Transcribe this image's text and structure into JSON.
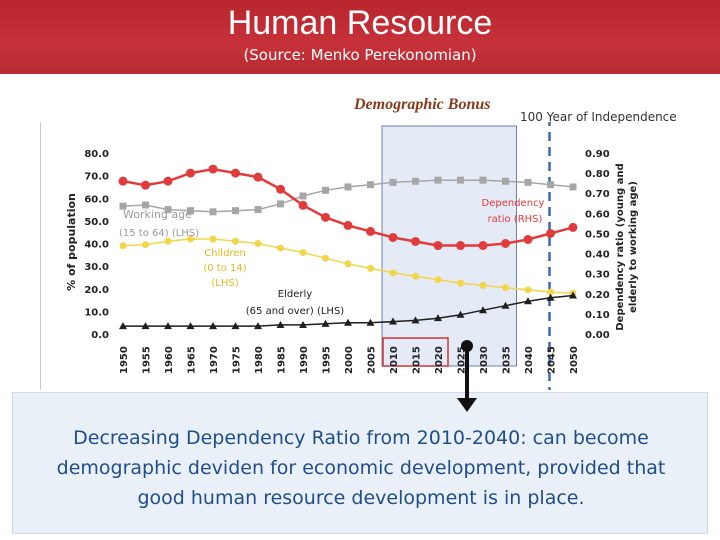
{
  "header": {
    "title": "Human Resource",
    "subtitle": "(Source: Menko Perekonomian)"
  },
  "annotations": {
    "bonus": "Demographic Bonus",
    "independence": "100  Year of Independence"
  },
  "chart_data": {
    "type": "line",
    "categories": [
      "1950",
      "1955",
      "1960",
      "1965",
      "1970",
      "1975",
      "1980",
      "1985",
      "1990",
      "1995",
      "2000",
      "2005",
      "2010",
      "2015",
      "2020",
      "2025",
      "2030",
      "2035",
      "2040",
      "2045",
      "2050"
    ],
    "ylabel": "% of population",
    "y2label_line1": "Dependency ratio (young and",
    "y2label_line2": "elderly to working age)",
    "ylim": [
      0,
      80
    ],
    "y2lim": [
      0,
      0.9
    ],
    "y_ticks": [
      "0.0",
      "10.0",
      "20.0",
      "30.0",
      "40.0",
      "50.0",
      "60.0",
      "70.0",
      "80.0"
    ],
    "y2_ticks": [
      "0.00",
      "0.10",
      "0.20",
      "0.30",
      "0.40",
      "0.50",
      "0.60",
      "0.70",
      "0.80",
      "0.90"
    ],
    "series": [
      {
        "name": "Working age (15 to 64) (LHS)",
        "axis": "left",
        "color": "#a6a6a6",
        "marker": "square",
        "values": [
          56.5,
          57,
          55,
          54.5,
          54,
          54.5,
          55,
          57.5,
          61,
          63.5,
          65,
          66,
          67,
          67.5,
          68,
          68,
          68,
          67.5,
          67,
          66,
          65
        ]
      },
      {
        "name": "Children (0 to 14) (LHS)",
        "axis": "left",
        "color": "#f2d64a",
        "marker": "circle",
        "values": [
          39,
          39.5,
          41,
          42,
          42,
          41,
          40,
          38,
          36,
          33.5,
          31,
          29,
          27,
          25.5,
          24,
          22.5,
          21.5,
          20.5,
          19.5,
          18.5,
          18
        ]
      },
      {
        "name": "Elderly (65 and over) (LHS)",
        "axis": "left",
        "color": "#1f1f1f",
        "marker": "triangle",
        "values": [
          3.5,
          3.5,
          3.5,
          3.5,
          3.5,
          3.5,
          3.5,
          4,
          4,
          4.5,
          5,
          5,
          5.5,
          6,
          7,
          8.5,
          10.5,
          12.5,
          14.5,
          16,
          17
        ]
      },
      {
        "name": "Dependency ratio (RHS)",
        "axis": "right",
        "color": "#e23b3b",
        "marker": "circle",
        "values": [
          0.76,
          0.74,
          0.76,
          0.8,
          0.82,
          0.8,
          0.78,
          0.72,
          0.64,
          0.58,
          0.54,
          0.51,
          0.48,
          0.46,
          0.44,
          0.44,
          0.44,
          0.45,
          0.47,
          0.5,
          0.53
        ]
      }
    ],
    "labels": {
      "working": [
        "Working age",
        "(15 to 64) (LHS)"
      ],
      "children": [
        "Children",
        "(0 to 14)",
        "(LHS)"
      ],
      "elderly": [
        "Elderly",
        "(65 and over) (LHS)"
      ],
      "dependency": [
        "Dependency",
        "ratio (RHS)"
      ]
    },
    "highlight_range": [
      "2010",
      "2035"
    ],
    "marker_year": "2045"
  },
  "callout": {
    "line1": "Decreasing Dependency Ratio from 2010-2040: can become",
    "line2": "demographic deviden for economic development, provided that",
    "line3": "good human resource development is in place."
  }
}
